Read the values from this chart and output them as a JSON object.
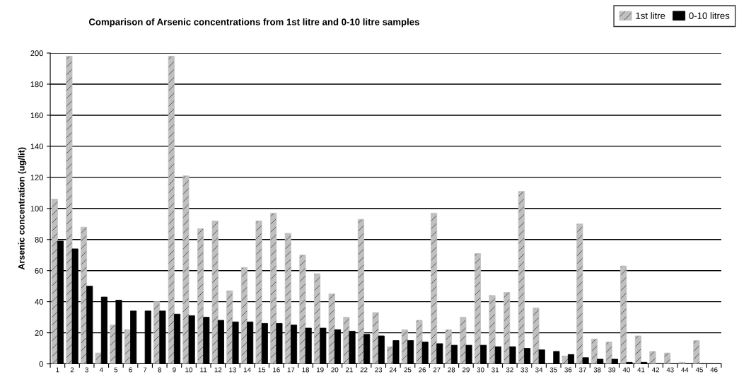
{
  "chart_data": {
    "type": "bar",
    "title": "Comparison of Arsenic concentrations from 1st litre and 0-10 litre samples",
    "ylabel": "Arsenic concentration (ug/lit)",
    "categories": [
      "1",
      "2",
      "3",
      "4",
      "5",
      "6",
      "7",
      "8",
      "9",
      "10",
      "11",
      "12",
      "13",
      "14",
      "15",
      "16",
      "17",
      "18",
      "19",
      "20",
      "21",
      "22",
      "23",
      "24",
      "25",
      "26",
      "27",
      "28",
      "29",
      "30",
      "31",
      "32",
      "33",
      "34",
      "35",
      "36",
      "37",
      "38",
      "39",
      "40",
      "41",
      "42",
      "43",
      "44",
      "45",
      "46"
    ],
    "series": [
      {
        "name": "1st litre",
        "color": "#c0c0c0",
        "values": [
          106,
          198,
          88,
          7,
          25,
          22,
          null,
          40,
          198,
          121,
          87,
          92,
          47,
          62,
          92,
          97,
          84,
          70,
          58,
          45,
          30,
          93,
          33,
          11,
          22,
          28,
          97,
          22,
          30,
          71,
          44,
          46,
          111,
          36,
          null,
          5,
          90,
          16,
          14,
          63,
          18,
          8,
          7,
          1,
          15,
          null
        ]
      },
      {
        "name": "0-10 litres",
        "color": "#000000",
        "values": [
          79,
          74,
          50,
          43,
          41,
          34,
          34,
          34,
          32,
          31,
          30,
          28,
          27,
          27,
          26,
          26,
          25,
          23,
          23,
          22,
          21,
          19,
          18,
          15,
          15,
          14,
          13,
          12,
          12,
          12,
          11,
          11,
          10,
          9,
          8,
          6,
          4,
          3,
          3,
          1,
          1,
          null,
          null,
          null,
          null,
          null
        ]
      }
    ],
    "ylim": [
      0,
      200
    ],
    "yticks": [
      0,
      20,
      40,
      60,
      80,
      100,
      120,
      140,
      160,
      180,
      200
    ],
    "grid": "y",
    "legend": "top right"
  }
}
